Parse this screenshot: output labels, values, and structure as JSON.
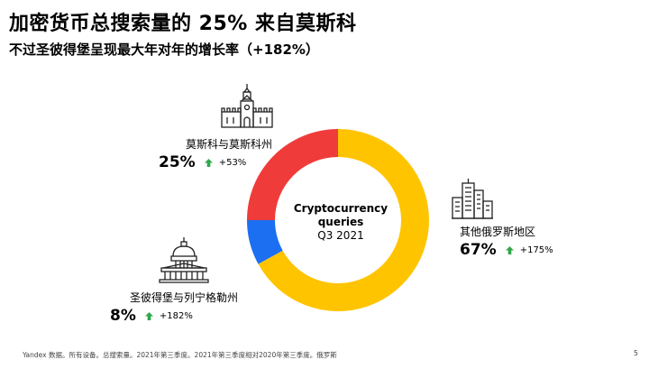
{
  "title": "加密货币总搜索量的 25% 来自莫斯科",
  "subtitle": "不过圣彼得堡呈现最大年对年的增长率（+182%）",
  "center": {
    "line1": "Cryptocurrency",
    "line2": "queries",
    "line3": "Q3 2021"
  },
  "regions": {
    "moscow": {
      "name": "莫斯科与莫斯科州",
      "pct": "25%",
      "change": "+53%"
    },
    "other": {
      "name": "其他俄罗斯地区",
      "pct": "67%",
      "change": "+175%"
    },
    "spb": {
      "name": "圣彼得堡与列宁格勒州",
      "pct": "8%",
      "change": "+182%"
    }
  },
  "icons": {
    "moscow": "kremlin-tower-icon",
    "other": "skyscrapers-icon",
    "spb": "capitol-dome-icon",
    "growth": "up-arrow-icon"
  },
  "footnote": "Yandex 数据。所有设备。总搜索量。2021年第三季度。2021年第三季度相对2020年第三季度。俄罗斯",
  "page_number": "5",
  "colors": {
    "moscow": "#f03b3b",
    "other": "#ffc400",
    "spb": "#1d6ff2",
    "growth": "#2ea84a"
  },
  "chart_data": {
    "type": "pie",
    "style": "donut",
    "title": "Cryptocurrency queries Q3 2021",
    "categories": [
      "莫斯科与莫斯科州",
      "其他俄罗斯地区",
      "圣彼得堡与列宁格勒州"
    ],
    "values": [
      25,
      67,
      8
    ],
    "changes_yoy": [
      "+53%",
      "+175%",
      "+182%"
    ],
    "colors": [
      "#f03b3b",
      "#ffc400",
      "#1d6ff2"
    ],
    "start_angle_deg": 0,
    "direction": "clockwise",
    "legend": "none"
  }
}
